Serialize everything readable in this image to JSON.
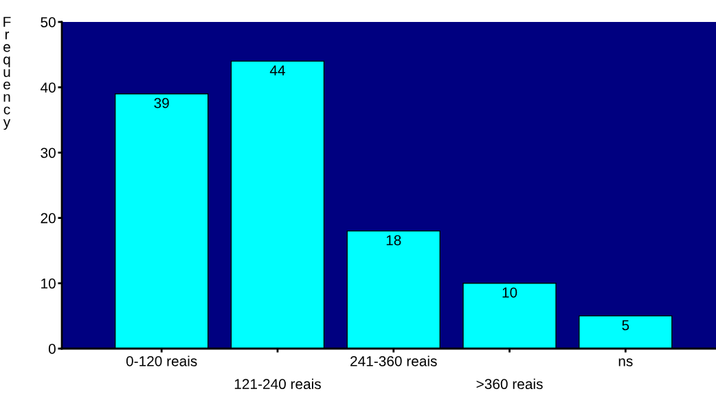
{
  "chart_data": {
    "type": "bar",
    "ylabel": "Frequency",
    "categories": [
      "0-120 reais",
      "121-240 reais",
      "241-360 reais",
      ">360 reais",
      "ns"
    ],
    "values": [
      39,
      44,
      18,
      10,
      5
    ],
    "color": "#00ffff",
    "ylim": [
      0,
      50
    ],
    "yticks": [
      0,
      10,
      20,
      30,
      40,
      50
    ],
    "data_labels": true,
    "grid": false,
    "legend": false
  }
}
